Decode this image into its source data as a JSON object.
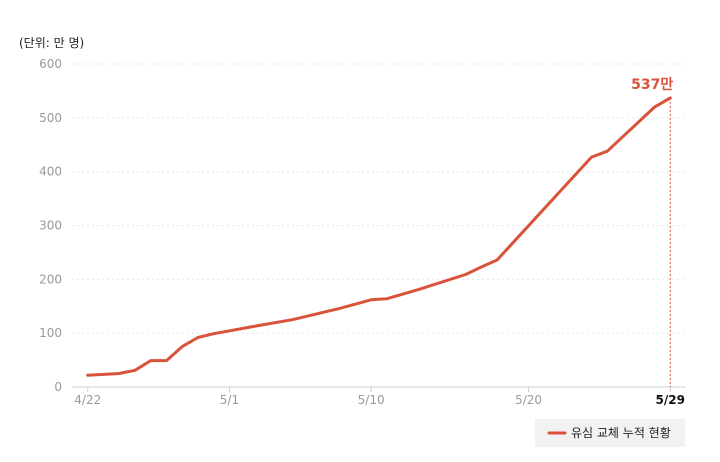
{
  "chart_data": {
    "type": "line",
    "unit_label": "(단위: 만 명)",
    "ylim": [
      0,
      600
    ],
    "yticks": [
      0,
      100,
      200,
      300,
      400,
      500,
      600
    ],
    "xlim": [
      "2025-04-21",
      "2025-05-30"
    ],
    "xticks": [
      {
        "date": "2025-04-22",
        "label": "4/22"
      },
      {
        "date": "2025-05-01",
        "label": "5/1"
      },
      {
        "date": "2025-05-10",
        "label": "5/10"
      },
      {
        "date": "2025-05-20",
        "label": "5/20"
      },
      {
        "date": "2025-05-29",
        "label": "5/29"
      }
    ],
    "grid": true,
    "legend_position": "bottom-right",
    "series": [
      {
        "name": "유심 교체 누적 현황",
        "color": "#d9533a",
        "points": [
          {
            "x": "2025-04-22",
            "y": 22
          },
          {
            "x": "2025-04-24",
            "y": 25
          },
          {
            "x": "2025-04-25",
            "y": 31
          },
          {
            "x": "2025-04-26",
            "y": 49
          },
          {
            "x": "2025-04-27",
            "y": 49
          },
          {
            "x": "2025-04-28",
            "y": 75
          },
          {
            "x": "2025-04-29",
            "y": 92
          },
          {
            "x": "2025-04-30",
            "y": 99
          },
          {
            "x": "2025-05-03",
            "y": 115
          },
          {
            "x": "2025-05-05",
            "y": 125
          },
          {
            "x": "2025-05-08",
            "y": 146
          },
          {
            "x": "2025-05-10",
            "y": 162
          },
          {
            "x": "2025-05-11",
            "y": 164
          },
          {
            "x": "2025-05-13",
            "y": 181
          },
          {
            "x": "2025-05-16",
            "y": 209
          },
          {
            "x": "2025-05-17",
            "y": 223
          },
          {
            "x": "2025-05-18",
            "y": 236
          },
          {
            "x": "2025-05-24",
            "y": 427
          },
          {
            "x": "2025-05-25",
            "y": 438
          },
          {
            "x": "2025-05-28",
            "y": 520
          },
          {
            "x": "2025-05-29",
            "y": 537
          }
        ]
      }
    ],
    "end_annotation": {
      "x": "2025-05-29",
      "y": 537,
      "text": "537만"
    }
  }
}
